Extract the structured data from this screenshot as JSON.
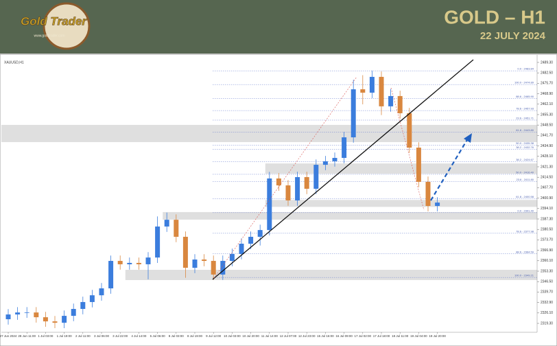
{
  "header": {
    "logo": "Gold Trader",
    "site": "www.goldtrader.com",
    "title": "GOLD – H1",
    "date": "22 JULY 2024"
  },
  "chart_data": {
    "type": "candlestick",
    "symbol": "XAUUSD,H1",
    "up_color": "#3b7ddd",
    "down_color": "#d9873f",
    "categories": [
      "27 Jun 2024",
      null,
      "28 Jun 11:00",
      null,
      "1 Jul 03:00",
      null,
      "1 Jul 19:00",
      null,
      "2 Jul 11:00",
      null,
      "3 Jul 06:00",
      null,
      "3 Jul 22:00",
      null,
      "4 Jul 14:00",
      null,
      "5 Jul 06:00",
      null,
      "8 Jul 03:00",
      null,
      "8 Jul 19:00",
      null,
      "9 Jul 12:00",
      null,
      "10 Jul 03:00",
      null,
      "10 Jul 20:00",
      null,
      "11 Jul 14:00",
      null,
      "12 Jul 07:00",
      null,
      "12 Jul 23:00",
      null,
      "15 Jul 16:00",
      null,
      "16 Jul 09:00",
      null,
      "17 Jul 02:00",
      null,
      "17 Jul 18:00",
      null,
      "18 Jul 11:00",
      null,
      "19 Jul 04:00",
      null,
      "19 Jul 20:00",
      null
    ],
    "open": [
      2322.0,
      2325.1,
      2326.4,
      2326.4,
      2323.3,
      2320.6,
      2319.7,
      2324.2,
      2328.7,
      2333.2,
      2337.6,
      2342.1,
      2360.0,
      2357.8,
      2358.7,
      2357.8,
      2362.2,
      2382.4,
      2386.8,
      2375.7,
      2355.5,
      2360.9,
      2360.0,
      2351.1,
      2360.0,
      2364.5,
      2371.2,
      2375.7,
      2380.1,
      2413.7,
      2409.2,
      2399.4,
      2414.6,
      2407.0,
      2422.6,
      2424.9,
      2427.1,
      2440.5,
      2471.8,
      2469.6,
      2479.9,
      2460.7,
      2467.4,
      2456.2,
      2433.8,
      2411.5,
      2395.8,
      null
    ],
    "high": [
      2328.6,
      2329.9,
      2329.9,
      2329.9,
      2326.8,
      2324.1,
      2327.7,
      2332.2,
      2336.7,
      2341.1,
      2345.6,
      2363.5,
      2363.5,
      2362.2,
      2362.2,
      2365.7,
      2389.0,
      2391.5,
      2390.3,
      2379.2,
      2364.4,
      2364.4,
      2363.5,
      2363.5,
      2368.0,
      2374.7,
      2379.2,
      2383.6,
      2418.0,
      2417.2,
      2412.7,
      2418.1,
      2418.1,
      2426.1,
      2428.4,
      2430.6,
      2444.0,
      2478.0,
      2481.0,
      2484.0,
      2483.4,
      2472.0,
      2470.9,
      2459.7,
      2437.3,
      2415.0,
      2401.5,
      null
    ],
    "low": [
      2318.5,
      2321.6,
      2322.9,
      2319.8,
      2317.1,
      2316.2,
      2316.2,
      2320.7,
      2325.2,
      2329.7,
      2334.1,
      2338.6,
      2354.3,
      2354.3,
      2354.3,
      2348.0,
      2358.7,
      2378.9,
      2372.2,
      2349.0,
      2352.0,
      2356.5,
      2347.6,
      2347.6,
      2356.5,
      2361.0,
      2367.7,
      2370.0,
      2376.6,
      2405.7,
      2395.9,
      2395.9,
      2403.5,
      2403.5,
      2419.1,
      2421.4,
      2423.6,
      2437.0,
      2462.0,
      2466.1,
      2455.0,
      2457.2,
      2452.7,
      2430.3,
      2408.0,
      2392.3,
      2392.3,
      null
    ],
    "close": [
      2325.1,
      2326.4,
      2326.4,
      2323.3,
      2320.6,
      2319.7,
      2324.2,
      2328.7,
      2333.2,
      2337.6,
      2342.1,
      2360.0,
      2357.8,
      2358.7,
      2357.8,
      2362.2,
      2382.4,
      2386.8,
      2375.7,
      2355.5,
      2360.9,
      2360.0,
      2351.1,
      2360.0,
      2364.5,
      2371.2,
      2375.7,
      2380.1,
      2413.7,
      2409.2,
      2399.4,
      2414.6,
      2407.0,
      2422.6,
      2424.9,
      2427.1,
      2440.5,
      2471.8,
      2469.6,
      2479.9,
      2460.7,
      2467.4,
      2456.2,
      2433.8,
      2411.5,
      2395.8,
      2398.0,
      null
    ],
    "ylim": [
      2313.5,
      2493.3
    ],
    "yticks": [
      {
        "value": 2489.3,
        "label": "2489.30"
      },
      {
        "value": 2482.5,
        "label": "2482.50"
      },
      {
        "value": 2475.7,
        "label": "2475.70"
      },
      {
        "value": 2468.9,
        "label": "2468.90"
      },
      {
        "value": 2462.1,
        "label": "2462.10"
      },
      {
        "value": 2455.3,
        "label": "2455.30"
      },
      {
        "value": 2448.5,
        "label": "2448.50"
      },
      {
        "value": 2441.7,
        "label": "2441.70"
      },
      {
        "value": 2434.9,
        "label": "2434.90"
      },
      {
        "value": 2428.1,
        "label": "2428.10"
      },
      {
        "value": 2421.3,
        "label": "2421.30"
      },
      {
        "value": 2414.5,
        "label": "2414.50"
      },
      {
        "value": 2407.7,
        "label": "2407.70"
      },
      {
        "value": 2400.9,
        "label": "2400.90"
      },
      {
        "value": 2394.1,
        "label": "2394.10"
      },
      {
        "value": 2387.3,
        "label": "2387.30"
      },
      {
        "value": 2380.5,
        "label": "2380.50"
      },
      {
        "value": 2373.7,
        "label": "2373.70"
      },
      {
        "value": 2366.9,
        "label": "2366.90"
      },
      {
        "value": 2360.1,
        "label": "2360.10"
      },
      {
        "value": 2353.3,
        "label": "2353.30"
      },
      {
        "value": 2346.5,
        "label": "2346.50"
      },
      {
        "value": 2339.7,
        "label": "2339.70"
      },
      {
        "value": 2332.9,
        "label": "2332.90"
      },
      {
        "value": 2326.1,
        "label": "2326.10"
      },
      {
        "value": 2319.3,
        "label": "2319.30"
      }
    ],
    "levels": [
      {
        "value": 2483.84,
        "label": "0.0 - 2483.84"
      },
      {
        "value": 2474.89,
        "label": "100.0 - 2474.89"
      },
      {
        "value": 2465.9,
        "label": "88.6 - 2465.90"
      },
      {
        "value": 2457.93,
        "label": "78.6 - 2457.93"
      },
      {
        "value": 2451.71,
        "label": "23.6 - 2451.71"
      },
      {
        "value": 2443.8,
        "label": "61.8 - 2443.80"
      },
      {
        "value": 2435.38,
        "label": "50.0 - 2435.38"
      },
      {
        "value": 2432.76,
        "label": "38.2 - 2432.76"
      },
      {
        "value": 2424.67,
        "label": "38.2 - 2424.67"
      },
      {
        "value": 2416.4,
        "label": "50.0 - 2416.40"
      },
      {
        "value": 2411.8,
        "label": "23.6 - 2411.80"
      },
      {
        "value": 2400.58,
        "label": "61.8 - 2400.58"
      },
      {
        "value": 2391.4,
        "label": "0.0 - 2391.40"
      },
      {
        "value": 2377.98,
        "label": "78.6 - 2377.98"
      },
      {
        "value": 2364.59,
        "label": "88.6 - 2364.59"
      },
      {
        "value": 2349.21,
        "label": "100.0 - 2349.21"
      }
    ],
    "zones": [
      {
        "top": 2448.6,
        "bottom": 2437.4,
        "start": 0
      },
      {
        "top": 2423.5,
        "bottom": 2416.8,
        "start": 28
      },
      {
        "top": 2399.7,
        "bottom": 2395.2,
        "start": 28
      },
      {
        "top": 2391.8,
        "bottom": 2386.9,
        "start": 17
      },
      {
        "top": 2354.2,
        "bottom": 2347.5,
        "start": 13
      }
    ]
  }
}
